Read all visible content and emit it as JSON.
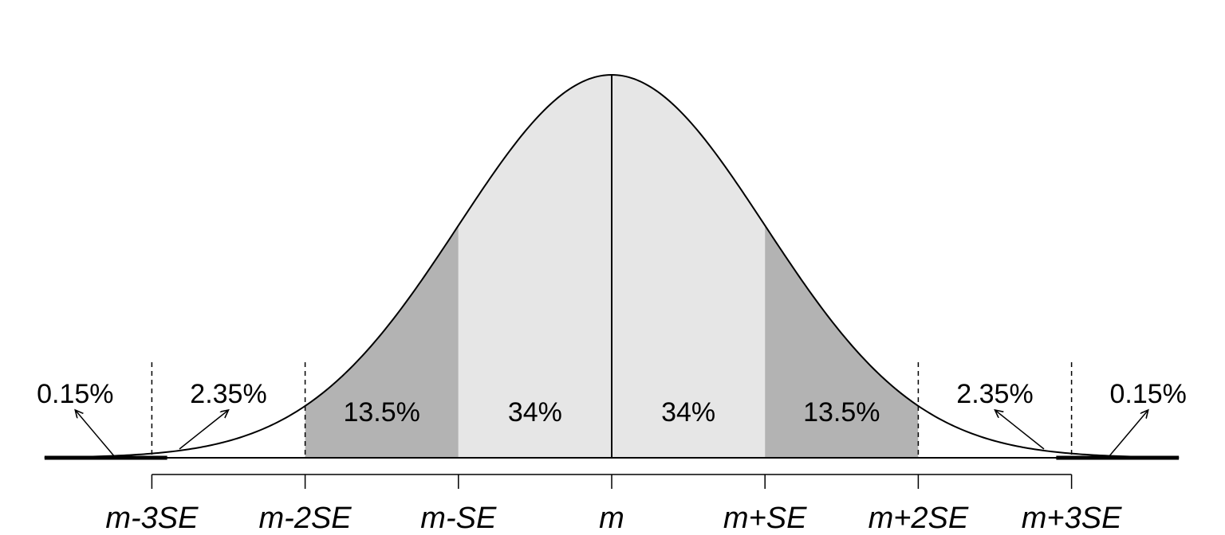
{
  "chart_data": {
    "type": "area",
    "distribution": "normal",
    "x_range_se": [
      -3.7,
      3.7
    ],
    "mean": 0,
    "se": 1,
    "regions": [
      {
        "from": -3,
        "to": -2,
        "label": "2.35%",
        "fill": "#ffffff"
      },
      {
        "from": -2,
        "to": -1,
        "label": "13.5%",
        "fill": "#b3b3b3"
      },
      {
        "from": -1,
        "to": 0,
        "label": "34%",
        "fill": "#e6e6e6"
      },
      {
        "from": 0,
        "to": 1,
        "label": "34%",
        "fill": "#e6e6e6"
      },
      {
        "from": 1,
        "to": 2,
        "label": "13.5%",
        "fill": "#b3b3b3"
      },
      {
        "from": 2,
        "to": 3,
        "label": "2.35%",
        "fill": "#ffffff"
      }
    ],
    "tail_labels": [
      {
        "side": "left",
        "label": "0.15%"
      },
      {
        "side": "right",
        "label": "0.15%"
      }
    ],
    "ticks": [
      {
        "x": -3,
        "label": "m-3SE"
      },
      {
        "x": -2,
        "label": "m-2SE"
      },
      {
        "x": -1,
        "label": "m-SE"
      },
      {
        "x": 0,
        "label": "m"
      },
      {
        "x": 1,
        "label": "m+SE"
      },
      {
        "x": 2,
        "label": "m+2SE"
      },
      {
        "x": 3,
        "label": "m+3SE"
      }
    ],
    "dashed_boundaries": [
      -3,
      -2,
      2,
      3
    ],
    "solid_boundaries": [
      0
    ],
    "curve_color": "#000000",
    "grid": false
  }
}
